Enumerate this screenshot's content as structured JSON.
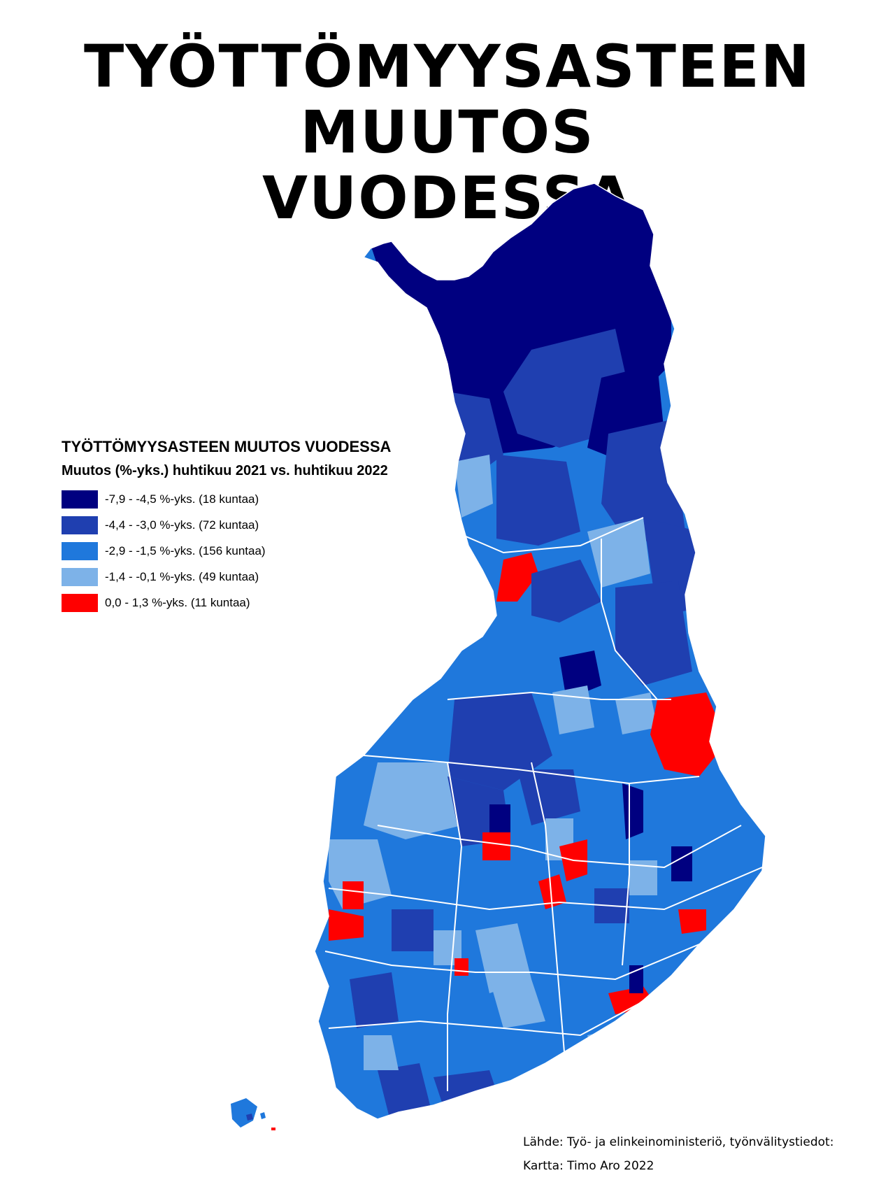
{
  "title": {
    "line1": "TYÖTTÖMYYSASTEEN MUUTOS",
    "line2": "VUODESSA"
  },
  "legend": {
    "title": "TYÖTTÖMYYSASTEEN MUUTOS VUODESSA",
    "subtitle": "Muutos (%-yks.) huhtikuu 2021 vs. huhtikuu 2022",
    "classes": [
      {
        "label": "-7,9 - -4,5 %-yks. (18 kuntaa)",
        "color": "#000080",
        "range": [
          -7.9,
          -4.5
        ],
        "municipalities": 18
      },
      {
        "label": "-4,4 - -3,0 %-yks. (72 kuntaa)",
        "color": "#1f3fb0",
        "range": [
          -4.4,
          -3.0
        ],
        "municipalities": 72
      },
      {
        "label": "-2,9 - -1,5 %-yks. (156 kuntaa)",
        "color": "#1f78dc",
        "range": [
          -2.9,
          -1.5
        ],
        "municipalities": 156
      },
      {
        "label": "-1,4 - -0,1 %-yks. (49 kuntaa)",
        "color": "#7db2e8",
        "range": [
          -1.4,
          -0.1
        ],
        "municipalities": 49
      },
      {
        "label": "0,0 - 1,3 %-yks. (11 kuntaa)",
        "color": "#ff0000",
        "range": [
          0.0,
          1.3
        ],
        "municipalities": 11
      }
    ]
  },
  "credits": {
    "source": "Lähde: Työ- ja elinkeinoministeriö, työnvälitystiedot:",
    "author": "Kartta: Timo Aro 2022"
  },
  "map": {
    "region": "Finland",
    "colors": {
      "very_dark": "#000080",
      "dark": "#1f3fb0",
      "medium": "#1f78dc",
      "light": "#7db2e8",
      "positive": "#ff0000",
      "border": "#ffffff"
    }
  }
}
